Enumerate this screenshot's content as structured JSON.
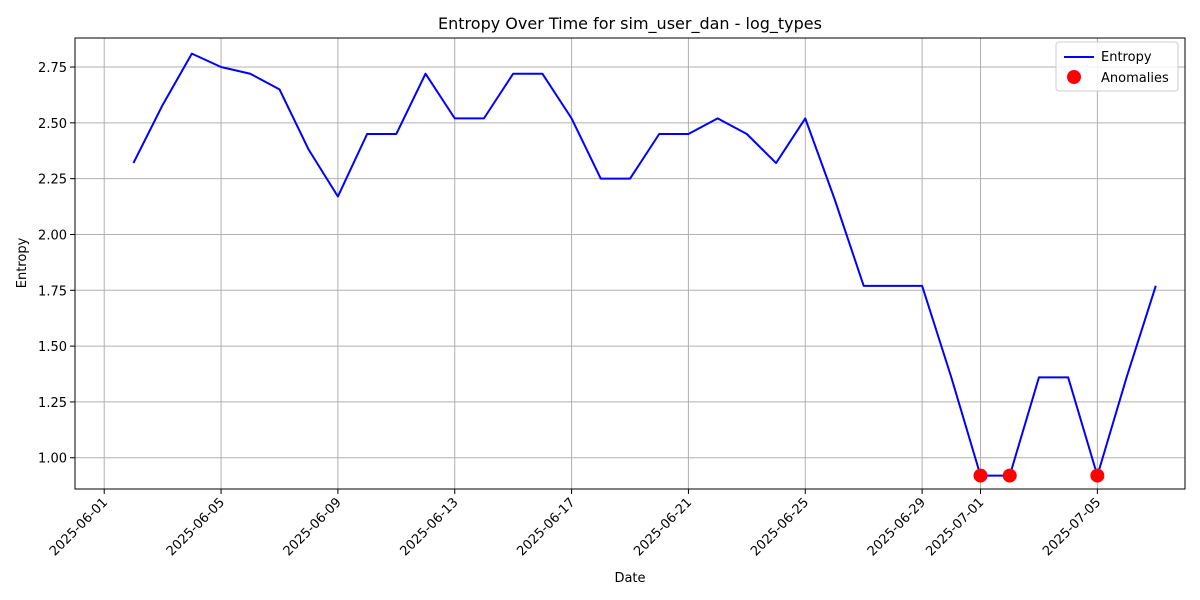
{
  "chart_data": {
    "type": "line",
    "title": "Entropy Over Time for sim_user_dan - log_types",
    "xlabel": "Date",
    "ylabel": "Entropy",
    "x_type": "date",
    "xlim": [
      "2025-05-31",
      "2025-07-08"
    ],
    "ylim": [
      0.86,
      2.88
    ],
    "x_ticks": [
      "2025-06-01",
      "2025-06-05",
      "2025-06-09",
      "2025-06-13",
      "2025-06-17",
      "2025-06-21",
      "2025-06-25",
      "2025-06-29",
      "2025-07-01",
      "2025-07-05"
    ],
    "y_ticks": [
      "1.00",
      "1.25",
      "1.50",
      "1.75",
      "2.00",
      "2.25",
      "2.50",
      "2.75"
    ],
    "grid": true,
    "legend_position": "top-right",
    "series": [
      {
        "name": "Entropy",
        "kind": "line",
        "color": "#0000ff",
        "points": [
          {
            "x": "2025-06-02",
            "y": 2.32
          },
          {
            "x": "2025-06-03",
            "y": 2.58
          },
          {
            "x": "2025-06-04",
            "y": 2.81
          },
          {
            "x": "2025-06-05",
            "y": 2.75
          },
          {
            "x": "2025-06-06",
            "y": 2.72
          },
          {
            "x": "2025-06-07",
            "y": 2.65
          },
          {
            "x": "2025-06-08",
            "y": 2.38
          },
          {
            "x": "2025-06-09",
            "y": 2.17
          },
          {
            "x": "2025-06-10",
            "y": 2.45
          },
          {
            "x": "2025-06-11",
            "y": 2.45
          },
          {
            "x": "2025-06-12",
            "y": 2.72
          },
          {
            "x": "2025-06-13",
            "y": 2.52
          },
          {
            "x": "2025-06-14",
            "y": 2.52
          },
          {
            "x": "2025-06-15",
            "y": 2.72
          },
          {
            "x": "2025-06-16",
            "y": 2.72
          },
          {
            "x": "2025-06-17",
            "y": 2.52
          },
          {
            "x": "2025-06-18",
            "y": 2.25
          },
          {
            "x": "2025-06-19",
            "y": 2.25
          },
          {
            "x": "2025-06-20",
            "y": 2.45
          },
          {
            "x": "2025-06-21",
            "y": 2.45
          },
          {
            "x": "2025-06-22",
            "y": 2.52
          },
          {
            "x": "2025-06-23",
            "y": 2.45
          },
          {
            "x": "2025-06-24",
            "y": 2.32
          },
          {
            "x": "2025-06-25",
            "y": 2.52
          },
          {
            "x": "2025-06-26",
            "y": 2.16
          },
          {
            "x": "2025-06-27",
            "y": 1.77
          },
          {
            "x": "2025-06-28",
            "y": 1.77
          },
          {
            "x": "2025-06-29",
            "y": 1.77
          },
          {
            "x": "2025-06-30",
            "y": 1.36
          },
          {
            "x": "2025-07-01",
            "y": 0.92
          },
          {
            "x": "2025-07-02",
            "y": 0.92
          },
          {
            "x": "2025-07-03",
            "y": 1.36
          },
          {
            "x": "2025-07-04",
            "y": 1.36
          },
          {
            "x": "2025-07-05",
            "y": 0.92
          },
          {
            "x": "2025-07-06",
            "y": 1.36
          },
          {
            "x": "2025-07-07",
            "y": 1.77
          }
        ]
      },
      {
        "name": "Anomalies",
        "kind": "scatter",
        "color": "#ff0000",
        "points": [
          {
            "x": "2025-07-01",
            "y": 0.92
          },
          {
            "x": "2025-07-02",
            "y": 0.92
          },
          {
            "x": "2025-07-05",
            "y": 0.92
          }
        ]
      }
    ]
  }
}
